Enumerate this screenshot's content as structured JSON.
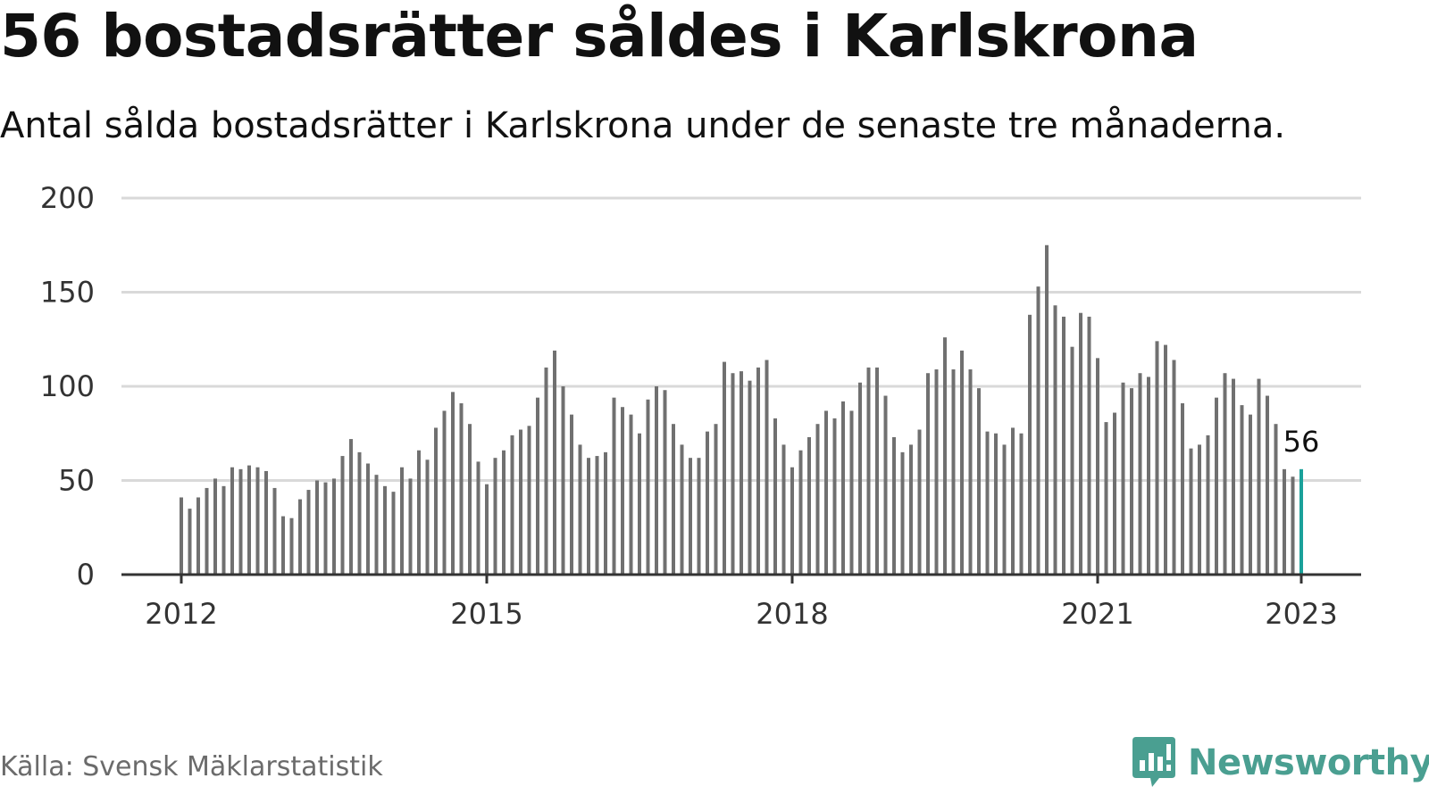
{
  "title": "56 bostadsrätter såldes i Karlskrona",
  "subtitle": "Antal sålda bostadsrätter i Karlskrona under de senaste tre månaderna.",
  "source": "Källa: Svensk Mäklarstatistik",
  "logo": {
    "text": "Newsworthy",
    "icon": "bar-chart-speech-bubble-icon"
  },
  "colors": {
    "bar": "#707070",
    "highlight": "#1aa19a",
    "grid": "#d9d9d9",
    "axis": "#333333",
    "brand": "#4a9f91"
  },
  "chart_data": {
    "type": "bar",
    "title": "56 bostadsrätter såldes i Karlskrona",
    "subtitle": "Antal sålda bostadsrätter i Karlskrona under de senaste tre månaderna.",
    "x_start": "2012-01",
    "x_ticks": [
      "2012",
      "2015",
      "2018",
      "2021",
      "2023"
    ],
    "y_ticks": [
      0,
      50,
      100,
      150,
      200
    ],
    "ylim": [
      0,
      200
    ],
    "grid": true,
    "highlight_label": "56",
    "values": [
      41,
      35,
      41,
      46,
      51,
      47,
      57,
      56,
      58,
      57,
      55,
      46,
      31,
      30,
      40,
      45,
      50,
      49,
      51,
      63,
      72,
      65,
      59,
      53,
      47,
      44,
      57,
      51,
      66,
      61,
      78,
      87,
      97,
      91,
      80,
      60,
      48,
      62,
      66,
      74,
      77,
      79,
      94,
      110,
      119,
      100,
      85,
      69,
      62,
      63,
      65,
      94,
      89,
      85,
      75,
      93,
      100,
      98,
      80,
      69,
      62,
      62,
      76,
      80,
      113,
      107,
      108,
      103,
      110,
      114,
      83,
      69,
      57,
      66,
      73,
      80,
      87,
      83,
      92,
      87,
      102,
      110,
      110,
      95,
      73,
      65,
      69,
      77,
      107,
      109,
      126,
      109,
      119,
      109,
      99,
      76,
      75,
      69,
      78,
      75,
      138,
      153,
      175,
      143,
      137,
      121,
      139,
      137,
      115,
      81,
      86,
      102,
      99,
      107,
      105,
      124,
      122,
      114,
      91,
      67,
      69,
      74,
      94,
      107,
      104,
      90,
      85,
      104,
      95,
      80,
      56,
      52,
      56
    ]
  }
}
